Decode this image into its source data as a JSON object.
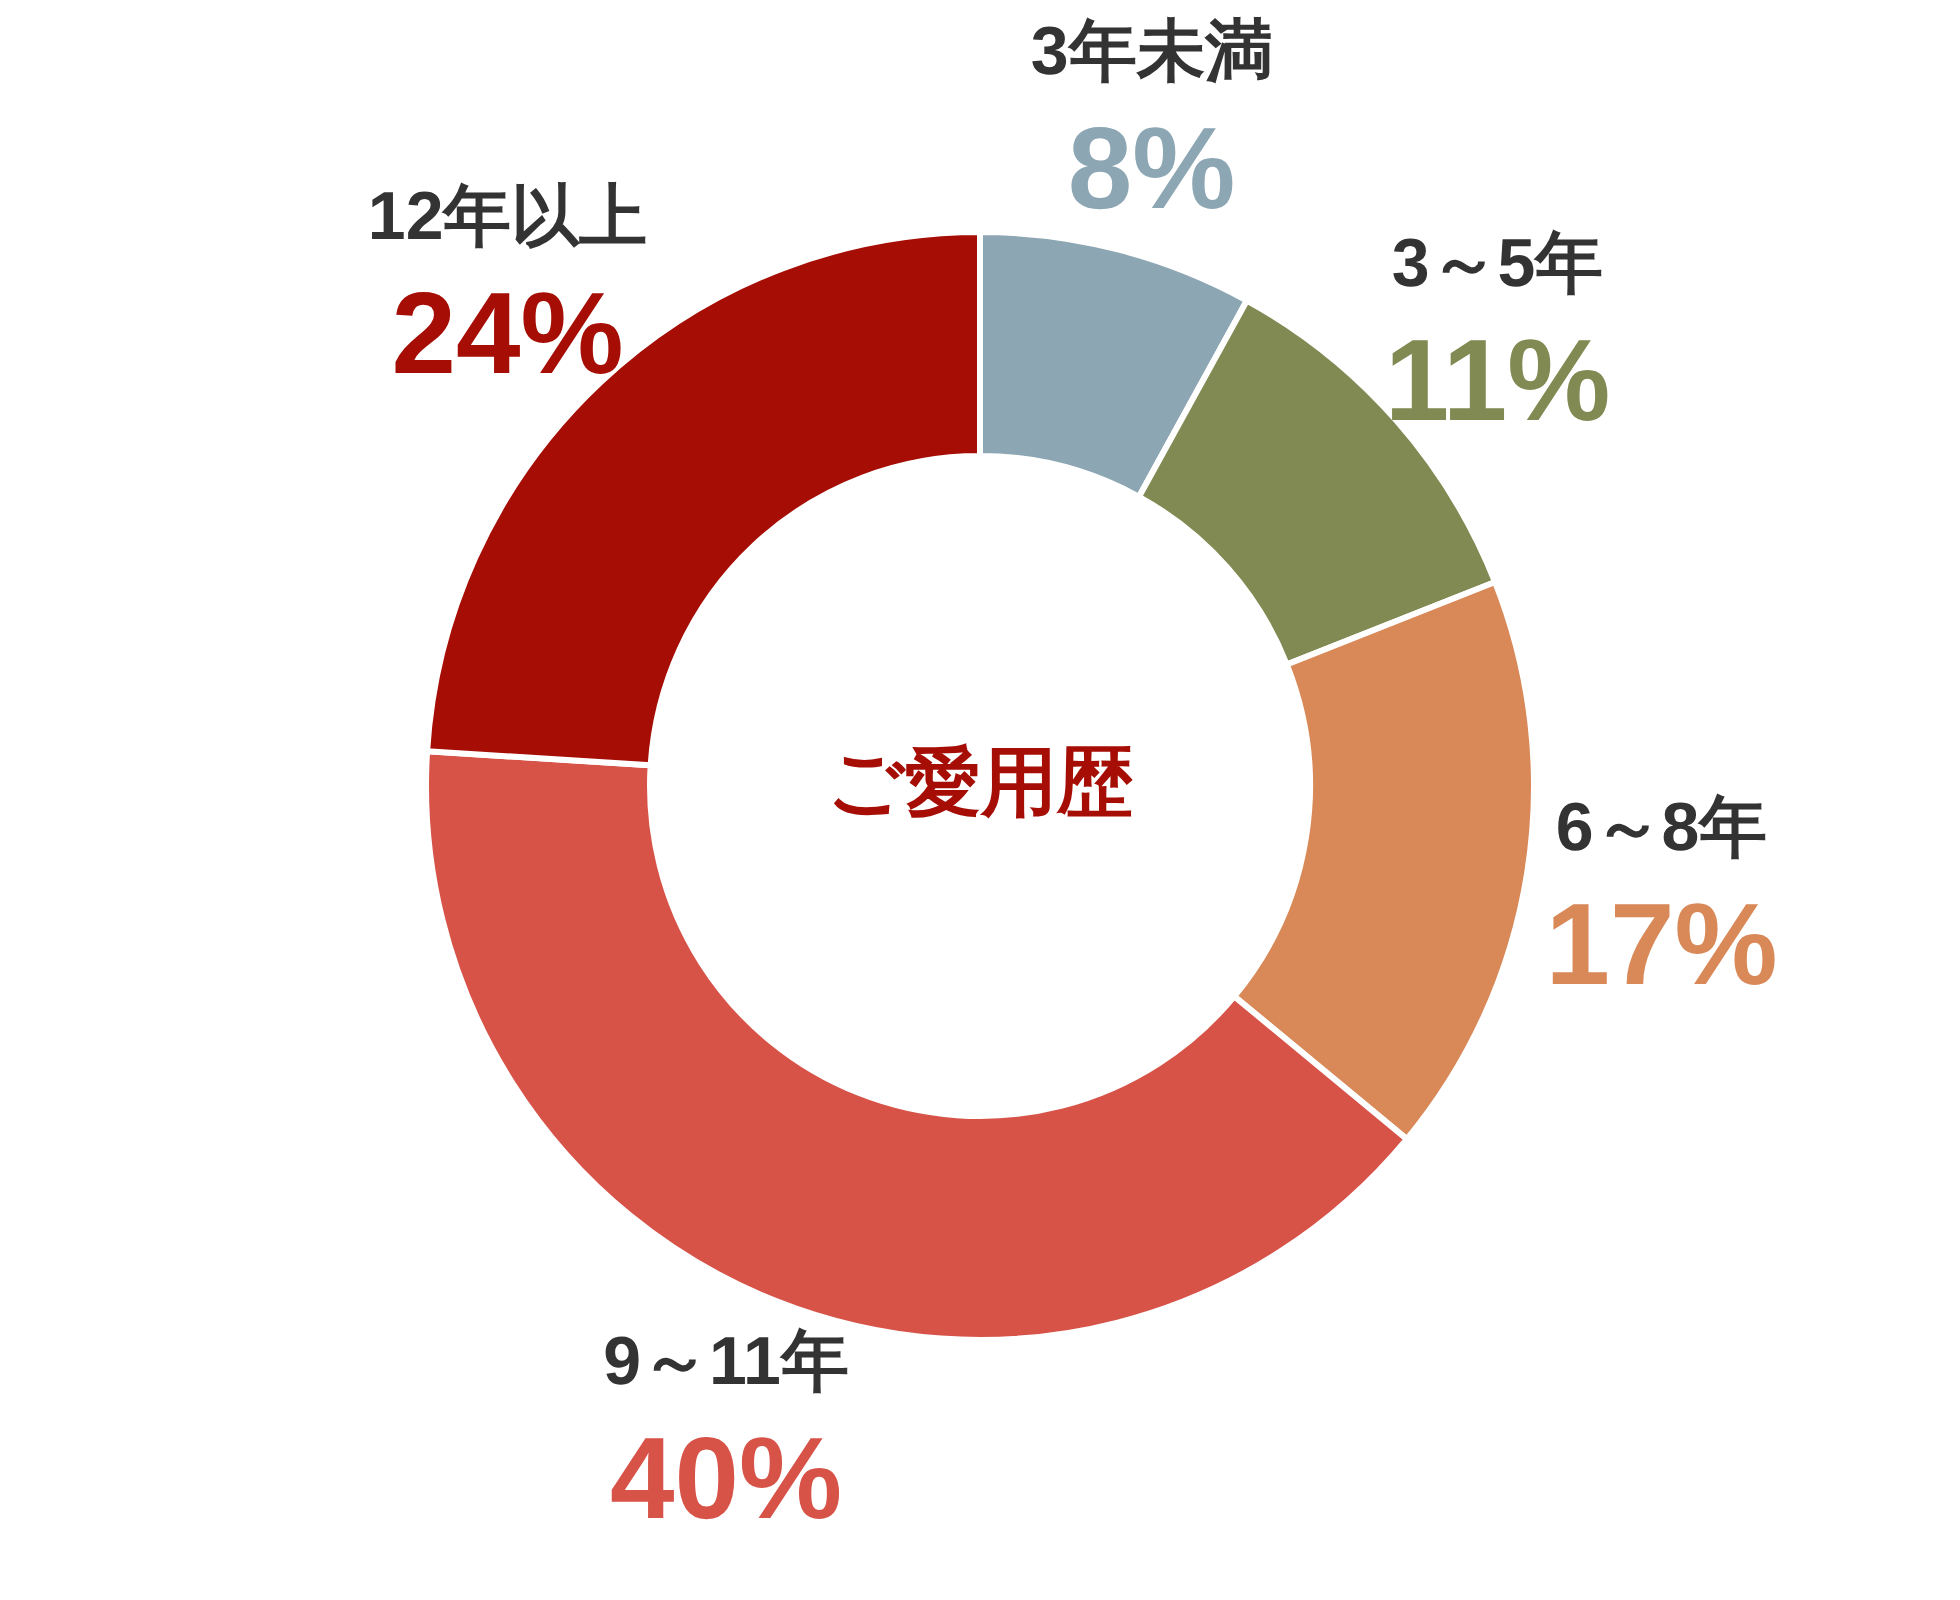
{
  "chart_data": {
    "type": "donut",
    "title": "ご愛用歴",
    "categories": [
      "3年未満",
      "3～5年",
      "6～8年",
      "9～11年",
      "12年以上"
    ],
    "values": [
      8,
      11,
      17,
      40,
      24
    ],
    "value_labels": [
      "8%",
      "11%",
      "17%",
      "40%",
      "24%"
    ],
    "colors": [
      "#8ca6b4",
      "#808a52",
      "#d98858",
      "#d75348",
      "#a50d05"
    ]
  }
}
